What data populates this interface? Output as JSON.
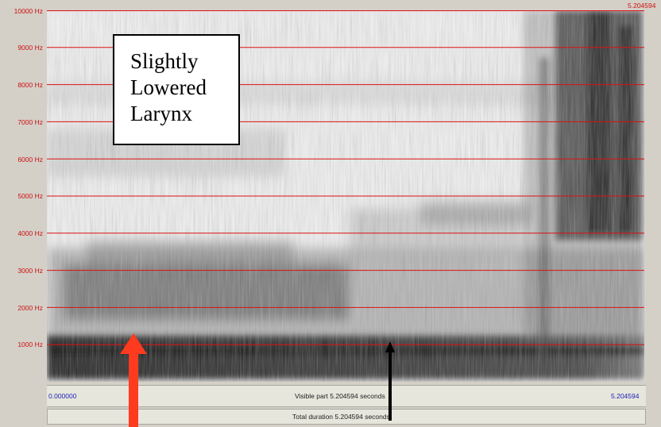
{
  "y_axis": {
    "labels": [
      "10000 Hz",
      "9000 Hz",
      "8000 Hz",
      "7000 Hz",
      "6000 Hz",
      "5000 Hz",
      "4000 Hz",
      "3000 Hz",
      "2000 Hz",
      "1000 Hz"
    ]
  },
  "top_right_label": "5.204594",
  "title_box": {
    "lines": [
      "Slightly",
      "Lowered",
      "Larynx"
    ]
  },
  "time_bar": {
    "start": "0.000000",
    "center": "Visible part 5.204594 seconds",
    "end": "5.204594"
  },
  "total_bar": {
    "text": "Total duration 5.204594 seconds"
  },
  "colors": {
    "gridline": "#dd1111",
    "label_red": "#cc1111",
    "time_blue": "#2222bb",
    "arrow_red": "#ff3b1f",
    "arrow_black": "#000000"
  }
}
